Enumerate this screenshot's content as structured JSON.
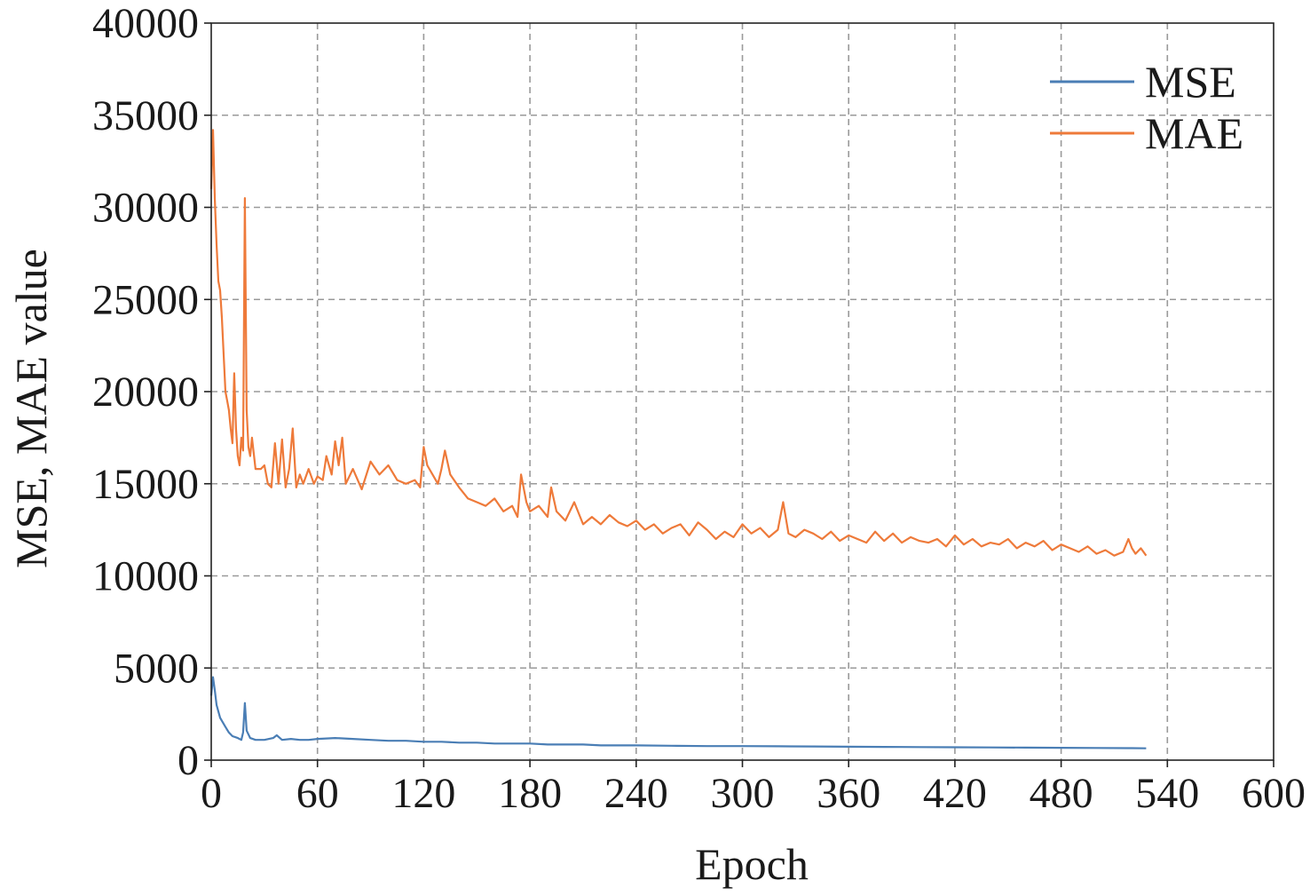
{
  "chart_data": {
    "type": "line",
    "title": "",
    "xlabel": "Epoch",
    "ylabel": "MSE, MAE value",
    "xlim": [
      0,
      600
    ],
    "ylim": [
      0,
      40000
    ],
    "xticks": [
      0,
      60,
      120,
      180,
      240,
      300,
      360,
      420,
      480,
      540,
      600
    ],
    "yticks": [
      0,
      5000,
      10000,
      15000,
      20000,
      25000,
      30000,
      35000,
      40000
    ],
    "x_tick_labels": [
      "0",
      "60",
      "120",
      "180",
      "240",
      "300",
      "360",
      "420",
      "480",
      "540",
      "600"
    ],
    "y_tick_labels": [
      "0",
      "5000",
      "10000",
      "15000",
      "20000",
      "25000",
      "30000",
      "35000",
      "40000"
    ],
    "grid": true,
    "legend_position": "top-right",
    "series": [
      {
        "name": "MSE",
        "color": "#4a7eb5",
        "points": [
          [
            0,
            3500
          ],
          [
            1,
            4500
          ],
          [
            2,
            3800
          ],
          [
            3,
            3000
          ],
          [
            5,
            2300
          ],
          [
            8,
            1800
          ],
          [
            10,
            1500
          ],
          [
            12,
            1300
          ],
          [
            15,
            1200
          ],
          [
            17,
            1100
          ],
          [
            18,
            1500
          ],
          [
            19,
            3100
          ],
          [
            20,
            1600
          ],
          [
            22,
            1200
          ],
          [
            25,
            1100
          ],
          [
            30,
            1100
          ],
          [
            35,
            1200
          ],
          [
            37,
            1350
          ],
          [
            40,
            1100
          ],
          [
            45,
            1150
          ],
          [
            50,
            1100
          ],
          [
            55,
            1100
          ],
          [
            60,
            1150
          ],
          [
            70,
            1200
          ],
          [
            80,
            1150
          ],
          [
            90,
            1100
          ],
          [
            100,
            1050
          ],
          [
            110,
            1050
          ],
          [
            120,
            1000
          ],
          [
            130,
            1000
          ],
          [
            140,
            950
          ],
          [
            150,
            950
          ],
          [
            160,
            900
          ],
          [
            170,
            900
          ],
          [
            180,
            900
          ],
          [
            190,
            850
          ],
          [
            200,
            850
          ],
          [
            210,
            850
          ],
          [
            220,
            800
          ],
          [
            240,
            800
          ],
          [
            260,
            780
          ],
          [
            280,
            760
          ],
          [
            300,
            760
          ],
          [
            320,
            750
          ],
          [
            340,
            740
          ],
          [
            360,
            730
          ],
          [
            380,
            720
          ],
          [
            400,
            710
          ],
          [
            420,
            700
          ],
          [
            440,
            690
          ],
          [
            460,
            680
          ],
          [
            480,
            670
          ],
          [
            500,
            660
          ],
          [
            520,
            650
          ],
          [
            528,
            640
          ]
        ]
      },
      {
        "name": "MAE",
        "color": "#ee7a3a",
        "points": [
          [
            0,
            31000
          ],
          [
            1,
            34200
          ],
          [
            2,
            30500
          ],
          [
            3,
            28000
          ],
          [
            4,
            26000
          ],
          [
            5,
            25500
          ],
          [
            6,
            24000
          ],
          [
            7,
            22000
          ],
          [
            8,
            20000
          ],
          [
            9,
            19500
          ],
          [
            10,
            19000
          ],
          [
            11,
            18000
          ],
          [
            12,
            17200
          ],
          [
            13,
            21000
          ],
          [
            14,
            18000
          ],
          [
            15,
            16500
          ],
          [
            16,
            16000
          ],
          [
            17,
            17500
          ],
          [
            18,
            16800
          ],
          [
            19,
            30500
          ],
          [
            20,
            19000
          ],
          [
            21,
            17000
          ],
          [
            22,
            16500
          ],
          [
            23,
            17500
          ],
          [
            25,
            15800
          ],
          [
            28,
            15800
          ],
          [
            30,
            16000
          ],
          [
            32,
            15000
          ],
          [
            34,
            14800
          ],
          [
            36,
            17200
          ],
          [
            38,
            15000
          ],
          [
            40,
            17400
          ],
          [
            42,
            14800
          ],
          [
            44,
            15800
          ],
          [
            46,
            18000
          ],
          [
            48,
            14800
          ],
          [
            50,
            15500
          ],
          [
            52,
            15000
          ],
          [
            55,
            15800
          ],
          [
            58,
            15000
          ],
          [
            60,
            15400
          ],
          [
            63,
            15200
          ],
          [
            65,
            16500
          ],
          [
            68,
            15500
          ],
          [
            70,
            17300
          ],
          [
            72,
            16000
          ],
          [
            74,
            17500
          ],
          [
            76,
            15000
          ],
          [
            80,
            15800
          ],
          [
            85,
            14700
          ],
          [
            90,
            16200
          ],
          [
            95,
            15500
          ],
          [
            100,
            16000
          ],
          [
            105,
            15200
          ],
          [
            110,
            15000
          ],
          [
            115,
            15200
          ],
          [
            118,
            14800
          ],
          [
            120,
            17000
          ],
          [
            122,
            16000
          ],
          [
            125,
            15500
          ],
          [
            128,
            15000
          ],
          [
            130,
            15800
          ],
          [
            132,
            16800
          ],
          [
            135,
            15500
          ],
          [
            140,
            14800
          ],
          [
            145,
            14200
          ],
          [
            150,
            14000
          ],
          [
            155,
            13800
          ],
          [
            160,
            14200
          ],
          [
            165,
            13500
          ],
          [
            170,
            13800
          ],
          [
            173,
            13200
          ],
          [
            175,
            15500
          ],
          [
            178,
            14000
          ],
          [
            180,
            13500
          ],
          [
            185,
            13800
          ],
          [
            190,
            13200
          ],
          [
            192,
            14800
          ],
          [
            195,
            13500
          ],
          [
            200,
            13000
          ],
          [
            205,
            14000
          ],
          [
            210,
            12800
          ],
          [
            215,
            13200
          ],
          [
            220,
            12800
          ],
          [
            225,
            13300
          ],
          [
            230,
            12900
          ],
          [
            235,
            12700
          ],
          [
            240,
            13000
          ],
          [
            245,
            12500
          ],
          [
            250,
            12800
          ],
          [
            255,
            12300
          ],
          [
            260,
            12600
          ],
          [
            265,
            12800
          ],
          [
            270,
            12200
          ],
          [
            275,
            12900
          ],
          [
            280,
            12500
          ],
          [
            285,
            12000
          ],
          [
            290,
            12400
          ],
          [
            295,
            12100
          ],
          [
            300,
            12800
          ],
          [
            305,
            12300
          ],
          [
            310,
            12600
          ],
          [
            315,
            12100
          ],
          [
            320,
            12500
          ],
          [
            323,
            14000
          ],
          [
            326,
            12300
          ],
          [
            330,
            12100
          ],
          [
            335,
            12500
          ],
          [
            340,
            12300
          ],
          [
            345,
            12000
          ],
          [
            350,
            12400
          ],
          [
            355,
            11900
          ],
          [
            360,
            12200
          ],
          [
            365,
            12000
          ],
          [
            370,
            11800
          ],
          [
            375,
            12400
          ],
          [
            380,
            11900
          ],
          [
            385,
            12300
          ],
          [
            390,
            11800
          ],
          [
            395,
            12100
          ],
          [
            400,
            11900
          ],
          [
            405,
            11800
          ],
          [
            410,
            12000
          ],
          [
            415,
            11600
          ],
          [
            420,
            12200
          ],
          [
            425,
            11700
          ],
          [
            430,
            12000
          ],
          [
            435,
            11600
          ],
          [
            440,
            11800
          ],
          [
            445,
            11700
          ],
          [
            450,
            12000
          ],
          [
            455,
            11500
          ],
          [
            460,
            11800
          ],
          [
            465,
            11600
          ],
          [
            470,
            11900
          ],
          [
            475,
            11400
          ],
          [
            480,
            11700
          ],
          [
            485,
            11500
          ],
          [
            490,
            11300
          ],
          [
            495,
            11600
          ],
          [
            500,
            11200
          ],
          [
            505,
            11400
          ],
          [
            510,
            11100
          ],
          [
            515,
            11300
          ],
          [
            518,
            12000
          ],
          [
            520,
            11500
          ],
          [
            522,
            11200
          ],
          [
            525,
            11500
          ],
          [
            528,
            11100
          ]
        ]
      }
    ]
  }
}
